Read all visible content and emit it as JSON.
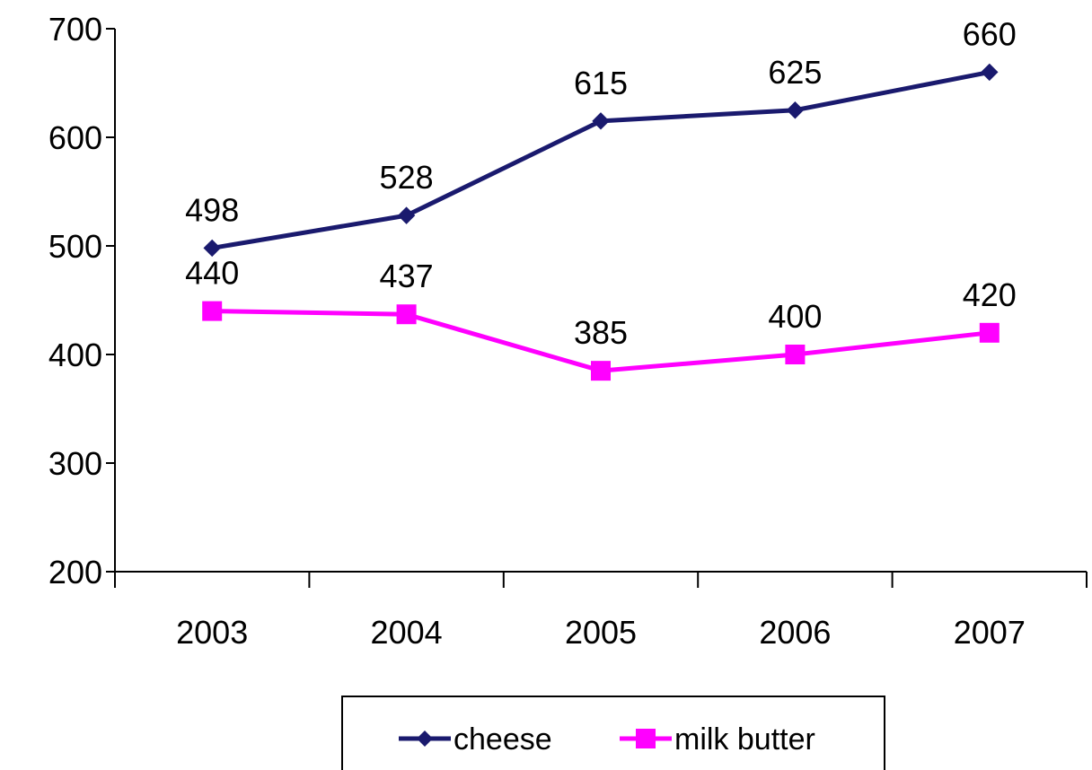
{
  "chart_data": {
    "type": "line",
    "categories": [
      "2003",
      "2004",
      "2005",
      "2006",
      "2007"
    ],
    "ylim": [
      200,
      700
    ],
    "yticks": [
      200,
      300,
      400,
      500,
      600,
      700
    ],
    "grid": false,
    "legend_position": "bottom",
    "series": [
      {
        "name": "cheese",
        "values": [
          498,
          528,
          615,
          625,
          660
        ],
        "color": "#1a1a6e",
        "marker": "diamond"
      },
      {
        "name": "milk butter",
        "values": [
          440,
          437,
          385,
          400,
          420
        ],
        "color": "#ff00ff",
        "marker": "square"
      }
    ]
  }
}
